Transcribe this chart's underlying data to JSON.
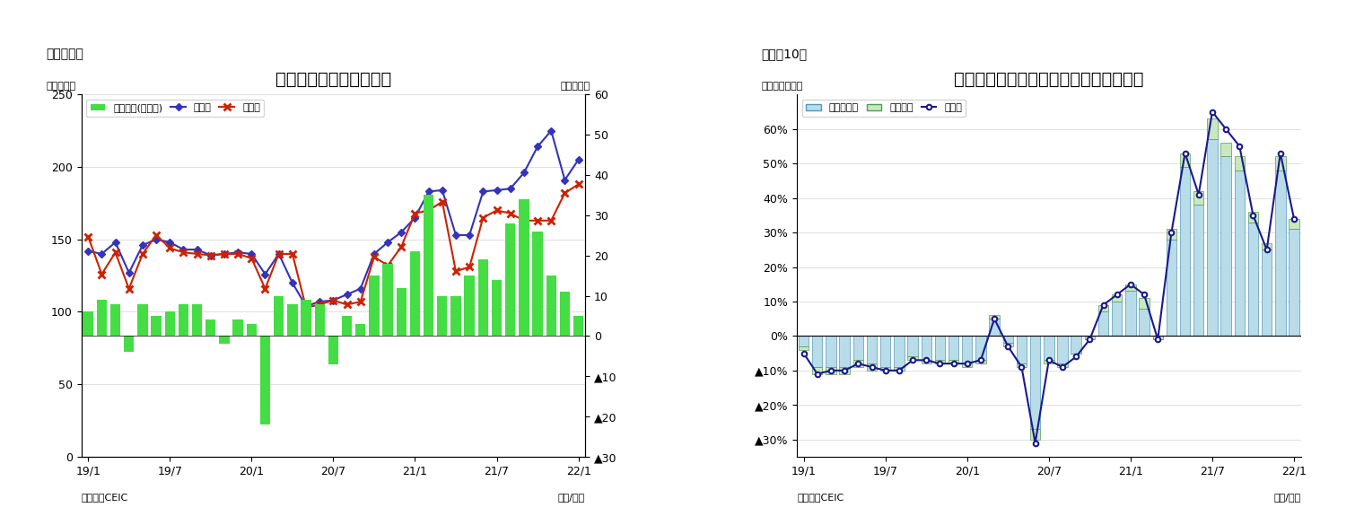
{
  "chart1": {
    "title": "インドネシア　貿易収支",
    "label_top": "（図表９）",
    "ylabel_left": "（億ドル）",
    "ylabel_right": "（億ドル）",
    "xlabel": "（年/月）",
    "source": "（資料）CEIC",
    "ylim_left": [
      0,
      250
    ],
    "ylim_right": [
      -30,
      60
    ],
    "yticks_left": [
      0,
      50,
      100,
      150,
      200,
      250
    ],
    "yticks_right_vals": [
      -30,
      -20,
      -10,
      0,
      10,
      20,
      30,
      40,
      50,
      60
    ],
    "xtick_positions": [
      0,
      6,
      12,
      18,
      24,
      30,
      36
    ],
    "xtick_labels": [
      "19/1",
      "19/7",
      "20/1",
      "20/7",
      "21/1",
      "21/7",
      "22/1"
    ],
    "legend_entries": [
      "貿易収支(右目盛)",
      "輸出額",
      "輸入額"
    ],
    "bar_color": "#44dd44",
    "export_color": "#3333bb",
    "import_color": "#cc2200",
    "trade_balance": [
      6,
      9,
      8,
      -4,
      8,
      5,
      6,
      8,
      8,
      4,
      -2,
      4,
      3,
      -22,
      10,
      8,
      9,
      8,
      -7,
      5,
      3,
      15,
      18,
      12,
      21,
      35,
      10,
      10,
      15,
      19,
      14,
      28,
      34,
      26,
      15,
      11,
      5
    ],
    "exports": [
      142,
      140,
      148,
      127,
      146,
      150,
      148,
      143,
      143,
      139,
      140,
      141,
      140,
      126,
      140,
      120,
      104,
      107,
      108,
      112,
      116,
      140,
      148,
      155,
      165,
      183,
      184,
      153,
      153,
      183,
      184,
      185,
      196,
      214,
      225,
      191,
      205
    ],
    "imports": [
      152,
      126,
      141,
      116,
      140,
      153,
      144,
      141,
      140,
      139,
      140,
      140,
      137,
      116,
      140,
      140,
      103,
      105,
      108,
      105,
      107,
      138,
      132,
      145,
      168,
      170,
      176,
      128,
      131,
      165,
      170,
      168,
      163,
      163,
      163,
      182,
      188
    ]
  },
  "chart2": {
    "title": "インドネシア　輸出の伸び率（品目別）",
    "label_top": "（図表10）",
    "ylabel_left": "（前年同月比）",
    "xlabel": "（年/月）",
    "source": "（資料）CEIC",
    "ylim": [
      -0.35,
      0.7
    ],
    "yticks_vals": [
      -0.3,
      -0.2,
      -0.1,
      0.0,
      0.1,
      0.2,
      0.3,
      0.4,
      0.5,
      0.6
    ],
    "ytick_labels": [
      "▲30%",
      "▲20%",
      "▲10%",
      "0%",
      "10%",
      "20%",
      "30%",
      "40%",
      "50%",
      "60%"
    ],
    "xtick_positions": [
      0,
      6,
      12,
      18,
      24,
      30,
      36
    ],
    "xtick_labels": [
      "19/1",
      "19/7",
      "20/1",
      "20/7",
      "21/1",
      "21/7",
      "22/1"
    ],
    "legend_entries": [
      "非石油ガス",
      "石油ガス",
      "輸出額"
    ],
    "non_oil_color": "#b8dce8",
    "non_oil_edge": "#5599bb",
    "oil_color": "#c8e8c0",
    "oil_edge": "#559955",
    "export_line_color": "#1a1a8c",
    "non_oil_gas": [
      -0.03,
      -0.09,
      -0.09,
      -0.09,
      -0.07,
      -0.08,
      -0.09,
      -0.09,
      -0.06,
      -0.07,
      -0.07,
      -0.07,
      -0.08,
      -0.07,
      0.05,
      -0.02,
      -0.08,
      -0.27,
      -0.07,
      -0.08,
      -0.05,
      -0.01,
      0.07,
      0.1,
      0.13,
      0.08,
      -0.01,
      0.28,
      0.49,
      0.38,
      0.57,
      0.52,
      0.48,
      0.33,
      0.25,
      0.48,
      0.31
    ],
    "oil_gas": [
      -0.01,
      -0.02,
      -0.02,
      -0.02,
      -0.02,
      -0.02,
      -0.01,
      -0.01,
      -0.01,
      -0.01,
      -0.01,
      -0.01,
      -0.01,
      -0.01,
      0.01,
      -0.01,
      -0.01,
      -0.03,
      -0.01,
      -0.01,
      0.0,
      0.0,
      0.02,
      0.02,
      0.02,
      0.03,
      0.01,
      0.03,
      0.04,
      0.04,
      0.06,
      0.04,
      0.04,
      0.03,
      0.02,
      0.04,
      0.03
    ],
    "export_line": [
      -0.05,
      -0.11,
      -0.1,
      -0.1,
      -0.08,
      -0.09,
      -0.1,
      -0.1,
      -0.07,
      -0.07,
      -0.08,
      -0.08,
      -0.08,
      -0.07,
      0.05,
      -0.03,
      -0.09,
      -0.31,
      -0.07,
      -0.09,
      -0.06,
      -0.01,
      0.09,
      0.12,
      0.15,
      0.12,
      -0.01,
      0.3,
      0.53,
      0.41,
      0.65,
      0.6,
      0.55,
      0.35,
      0.25,
      0.53,
      0.34
    ]
  }
}
